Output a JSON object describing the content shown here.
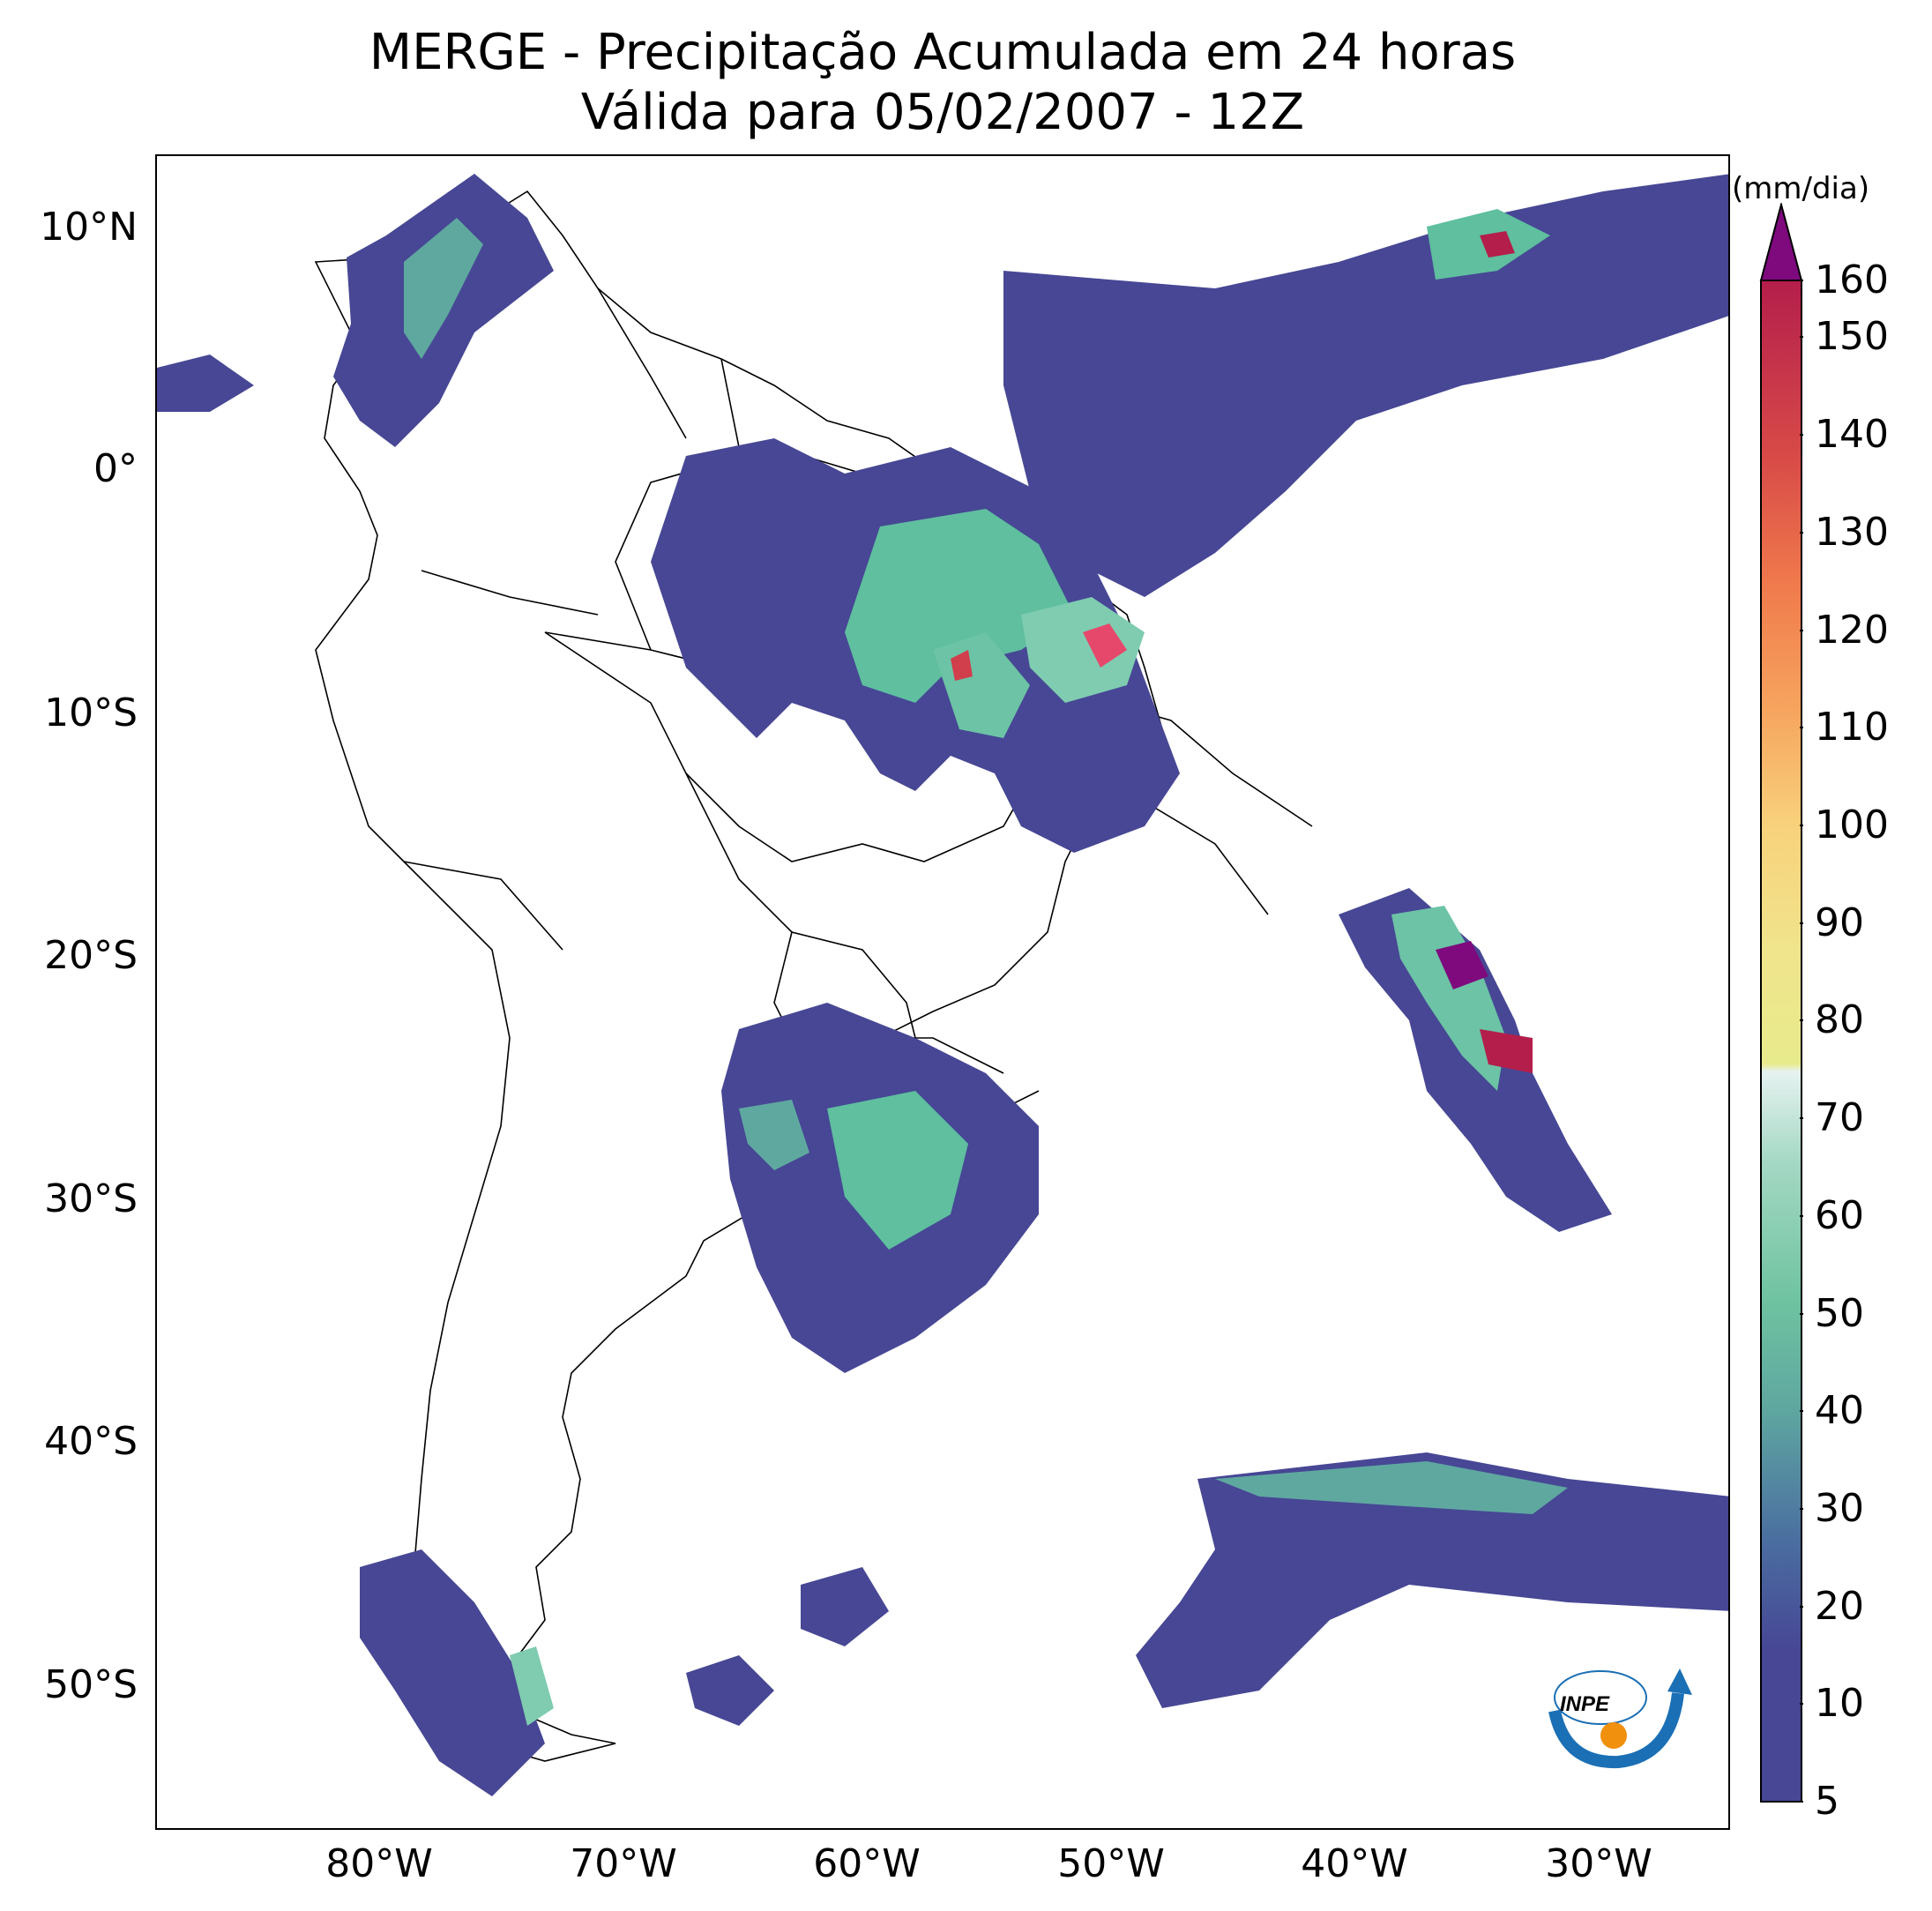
{
  "title": {
    "line1": "MERGE - Precipitação Acumulada em 24 horas",
    "line2": "Válida para 05/02/2007 - 12Z"
  },
  "map": {
    "type": "precipitation-contour-map",
    "region": "South America",
    "lat_labels": [
      "10°N",
      "0°",
      "10°S",
      "20°S",
      "30°S",
      "40°S",
      "50°S"
    ],
    "lon_labels": [
      "80°W",
      "70°W",
      "60°W",
      "50°W",
      "40°W",
      "30°W"
    ],
    "lat_range": [
      -56,
      13
    ],
    "lon_range": [
      -90,
      -25
    ],
    "coastline_color": "#000000"
  },
  "colorbar": {
    "unit": "(mm/dia)",
    "ticks": [
      "5",
      "10",
      "20",
      "30",
      "40",
      "50",
      "60",
      "70",
      "80",
      "90",
      "100",
      "110",
      "120",
      "130",
      "140",
      "150",
      "160"
    ],
    "min": 5,
    "max": 160,
    "extend": "max",
    "colors": {
      "low": "#474795",
      "green": "#5fbf9f",
      "light": "#e6f2f0",
      "yellow": "#f0eb8c",
      "orange": "#f6a35e",
      "red": "#d13e4c",
      "darkred": "#b41e4b",
      "extend": "#7e0a7e"
    }
  },
  "logo": {
    "text": "INPE",
    "blue": "#1a6fb5",
    "orange": "#f0900c"
  }
}
